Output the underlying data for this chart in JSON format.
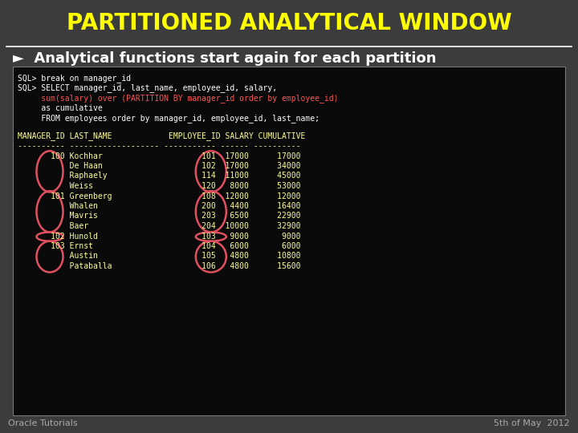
{
  "title": "PARTITIONED ANALYTICAL WINDOW",
  "title_color": "#FFFF00",
  "header_bg": "#3c3c3c",
  "subtitle": "►  Analytical functions start again for each partition",
  "subtitle_color": "#ffffff",
  "footer_text_left": "Oracle Tutorials",
  "footer_text_right": "5th of May  2012",
  "footer_color": "#aaaaaa",
  "code_lines": [
    {
      "text": "SQL> break on manager_id",
      "color": "#ffffff"
    },
    {
      "text": "SQL> SELECT manager_id, last_name, employee_id, salary,",
      "color": "#ffffff"
    },
    {
      "text": "     sum(salary) over (PARTITION BY manager_id order by employee_id)",
      "color": "#ff5555"
    },
    {
      "text": "     as cumulative",
      "color": "#ffffff"
    },
    {
      "text": "     FROM employees order by manager_id, employee_id, last_name;",
      "color": "#ffffff"
    }
  ],
  "table_header": "MANAGER_ID LAST_NAME            EMPLOYEE_ID SALARY CUMULATIVE",
  "table_sep": "---------- ------------------- ----------- ------ ----------",
  "table_rows": [
    "       100 Kochhar                     101  17000      17000",
    "           De Haan                     102  17000      34000",
    "           Raphaely                    114  11000      45000",
    "           Weiss                       120   8000      53000",
    "       101 Greenberg                   108  12000      12000",
    "           Whalen                      200   4400      16400",
    "           Mavris                      203   6500      22900",
    "           Baer                        204  10000      32900",
    "       102 Hunold                      103   9000       9000",
    "       103 Ernst                       104   6000       6000",
    "           Austin                      105   4800      10800",
    "           Pataballa                   106   4800      15600"
  ],
  "ellipse_color": "#e05060",
  "content_bg": "#0a0a0a",
  "mono_color": "#ffff99",
  "title_fontsize": 20,
  "subtitle_fontsize": 13,
  "mono_fontsize": 7,
  "footer_fontsize": 8
}
